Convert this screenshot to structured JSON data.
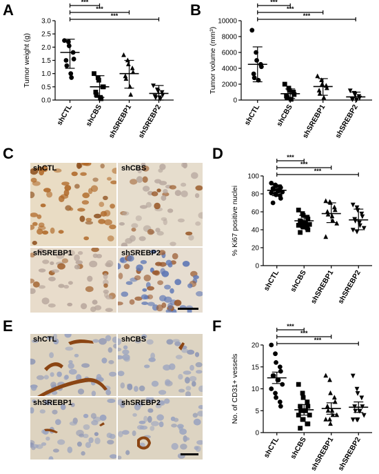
{
  "panels": {
    "A": {
      "letter": "A"
    },
    "B": {
      "letter": "B"
    },
    "C": {
      "letter": "C",
      "tiles": [
        "shCTL",
        "shCBS",
        "shSREBP1",
        "shSREBP2"
      ]
    },
    "D": {
      "letter": "D"
    },
    "E": {
      "letter": "E",
      "tiles": [
        "shCTL",
        "shCBS",
        "shSREBP1",
        "shSREBP2"
      ]
    },
    "F": {
      "letter": "F"
    }
  },
  "chart_data": [
    {
      "panel": "A",
      "type": "scatter",
      "ylabel": "Tumor weight (g)",
      "categories": [
        "shCTL",
        "shCBS",
        "shSREBP1",
        "shSREBP2"
      ],
      "markers": [
        "circle",
        "square",
        "triangle",
        "triangle-down"
      ],
      "ylim": [
        0,
        3.0
      ],
      "yticks": [
        "0.0",
        "0.5",
        "1.0",
        "1.5",
        "2.0",
        "2.5",
        "3.0"
      ],
      "points": [
        [
          2.25,
          2.2,
          2.05,
          1.8,
          1.55,
          1.5,
          1.3,
          1.0,
          0.85
        ],
        [
          1.0,
          0.85,
          0.75,
          0.5,
          0.5,
          0.3,
          0.2,
          0.1,
          0.05
        ],
        [
          1.7,
          1.5,
          1.35,
          1.2,
          1.05,
          0.9,
          0.8,
          0.5,
          0.2
        ],
        [
          0.55,
          0.4,
          0.35,
          0.3,
          0.2,
          0.15,
          0.1,
          0.1,
          0.05
        ]
      ],
      "mean": [
        1.8,
        0.5,
        1.0,
        0.25
      ],
      "err_low": [
        1.2,
        0.1,
        0.45,
        0.0
      ],
      "err_high": [
        2.3,
        0.92,
        1.5,
        0.55
      ],
      "significance": [
        {
          "from": "shCTL",
          "to": "shCBS",
          "label": "***"
        },
        {
          "from": "shCTL",
          "to": "shSREBP1",
          "label": "***"
        },
        {
          "from": "shCTL",
          "to": "shSREBP2",
          "label": "***"
        }
      ]
    },
    {
      "panel": "B",
      "type": "scatter",
      "ylabel": "Tumor volume (mm³)",
      "categories": [
        "shCTL",
        "shCBS",
        "shSREBP1",
        "shSREBP2"
      ],
      "markers": [
        "circle",
        "square",
        "triangle",
        "triangle-down"
      ],
      "ylim": [
        0,
        10000
      ],
      "yticks": [
        "0",
        "2000",
        "4000",
        "6000",
        "8000",
        "10000"
      ],
      "points": [
        [
          8800,
          6000,
          5000,
          4500,
          4200,
          3300,
          2800,
          2500
        ],
        [
          2000,
          1500,
          1200,
          1000,
          700,
          500,
          300,
          100
        ],
        [
          3000,
          2500,
          2000,
          1800,
          1500,
          1200,
          800,
          300
        ],
        [
          1200,
          900,
          700,
          500,
          300,
          200,
          100,
          50
        ]
      ],
      "mean": [
        4500,
        800,
        1700,
        400
      ],
      "err_low": [
        2300,
        200,
        600,
        0
      ],
      "err_high": [
        6700,
        1400,
        2700,
        1000
      ],
      "significance": [
        {
          "from": "shCTL",
          "to": "shCBS",
          "label": "***"
        },
        {
          "from": "shCTL",
          "to": "shSREBP1",
          "label": "***"
        },
        {
          "from": "shCTL",
          "to": "shSREBP2",
          "label": "***"
        }
      ]
    },
    {
      "panel": "D",
      "type": "scatter",
      "ylabel": "% Ki67 positive nuclei",
      "categories": [
        "shCTL",
        "shCBS",
        "shSREBP1",
        "shSREBP2"
      ],
      "markers": [
        "circle",
        "square",
        "triangle",
        "triangle-down"
      ],
      "ylim": [
        0,
        100
      ],
      "yticks": [
        "0",
        "20",
        "40",
        "60",
        "80",
        "100"
      ],
      "points": [
        [
          92,
          90,
          89,
          88,
          87,
          86,
          85,
          84,
          83,
          82,
          81,
          80,
          79,
          78,
          75,
          70
        ],
        [
          62,
          58,
          56,
          54,
          52,
          50,
          49,
          48,
          47,
          46,
          45,
          44,
          43,
          42,
          40,
          37
        ],
        [
          72,
          71,
          70,
          65,
          62,
          60,
          57,
          55,
          50,
          47,
          32
        ],
        [
          68,
          65,
          62,
          58,
          55,
          52,
          50,
          48,
          45,
          42,
          40,
          38
        ]
      ],
      "mean": [
        84,
        50,
        58,
        51
      ],
      "err_low": [
        78,
        43,
        48,
        40
      ],
      "err_high": [
        90,
        56,
        70,
        63
      ],
      "significance": [
        {
          "from": "shCTL",
          "to": "shCBS",
          "label": "***"
        },
        {
          "from": "shCTL",
          "to": "shSREBP1",
          "label": "***"
        },
        {
          "from": "shCTL",
          "to": "shSREBP2",
          "label": "***"
        }
      ]
    },
    {
      "panel": "F",
      "type": "scatter",
      "ylabel": "No. of CD31+ vessels",
      "categories": [
        "shCTL",
        "shCBS",
        "shSREBP1",
        "shSREBP2"
      ],
      "markers": [
        "circle",
        "square",
        "triangle",
        "triangle-down"
      ],
      "ylim": [
        0,
        20
      ],
      "yticks": [
        "0",
        "5",
        "10",
        "15",
        "20"
      ],
      "points": [
        [
          20,
          18,
          16,
          15,
          14,
          13,
          13,
          12,
          12,
          11,
          10,
          9,
          8,
          7,
          6
        ],
        [
          11,
          9,
          8,
          7,
          6,
          6,
          5,
          5,
          5,
          4,
          4,
          3,
          3,
          2,
          2,
          1
        ],
        [
          13,
          12,
          9,
          8,
          7,
          6,
          5,
          5,
          4,
          4,
          3,
          3,
          2
        ],
        [
          13,
          10,
          9,
          8,
          6,
          6,
          5,
          5,
          5,
          4,
          3,
          3,
          3
        ]
      ],
      "mean": [
        12.5,
        5.2,
        5.5,
        5.8
      ],
      "err_low": [
        11.2,
        4.0,
        4.2,
        4.6
      ],
      "err_high": [
        13.8,
        6.4,
        6.8,
        7.0
      ],
      "significance": [
        {
          "from": "shCTL",
          "to": "shCBS",
          "label": "***"
        },
        {
          "from": "shCTL",
          "to": "shSREBP1",
          "label": "***"
        },
        {
          "from": "shCTL",
          "to": "shSREBP2",
          "label": "***"
        }
      ]
    }
  ]
}
